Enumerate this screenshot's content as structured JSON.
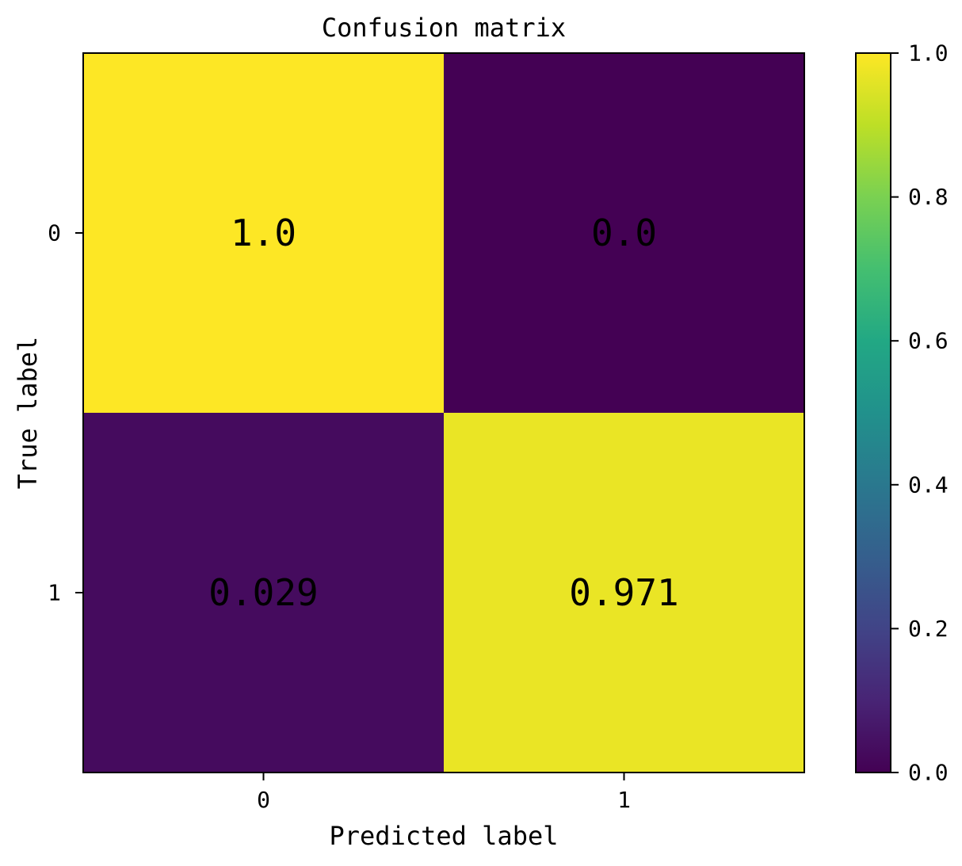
{
  "chart_data": {
    "type": "heatmap",
    "title": "Confusion matrix",
    "xlabel": "Predicted label",
    "ylabel": "True label",
    "x_categories": [
      "0",
      "1"
    ],
    "y_categories": [
      "0",
      "1"
    ],
    "values": [
      [
        1.0,
        0.0
      ],
      [
        0.029,
        0.971
      ]
    ],
    "cell_labels": [
      [
        "1.0",
        "0.0"
      ],
      [
        "0.029",
        "0.971"
      ]
    ],
    "colormap": "viridis",
    "colorbar": {
      "range": [
        0.0,
        1.0
      ],
      "ticks": [
        0.0,
        0.2,
        0.4,
        0.6,
        0.8,
        1.0
      ],
      "tick_labels": [
        "0.0",
        "0.2",
        "0.4",
        "0.6",
        "0.8",
        "1.0"
      ]
    },
    "colors": {
      "low": "#440154",
      "high": "#fde725",
      "label_on_dark": "#fde725",
      "label_on_light": "#000000"
    }
  }
}
